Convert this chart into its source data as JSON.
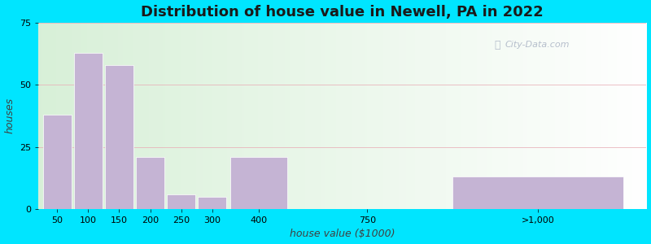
{
  "title": "Distribution of house value in Newell, PA in 2022",
  "xlabel": "house value ($1000)",
  "ylabel": "houses",
  "bar_color": "#c5b4d4",
  "bar_edge_color": "#ffffff",
  "background_outer": "#00e5ff",
  "grid_color": "#e8b0b8",
  "ylim": [
    0,
    75
  ],
  "yticks": [
    0,
    25,
    50,
    75
  ],
  "categories": [
    "50",
    "100",
    "150",
    "200",
    "250",
    "300",
    "400",
    "750",
    ">1,000"
  ],
  "values": [
    38,
    63,
    58,
    21,
    6,
    5,
    21,
    0,
    13
  ],
  "x_positions": [
    0.5,
    1.5,
    2.5,
    3.5,
    4.5,
    5.5,
    7.0,
    10.5,
    16.0
  ],
  "bar_widths": [
    1.0,
    1.0,
    1.0,
    1.0,
    1.0,
    1.0,
    2.0,
    1.0,
    6.0
  ],
  "tick_x": [
    0.5,
    1.5,
    2.5,
    3.5,
    4.5,
    5.5,
    7.0,
    10.5,
    16.0
  ],
  "title_fontsize": 13,
  "label_fontsize": 9,
  "tick_fontsize": 8,
  "xlim": [
    -0.1,
    19.5
  ]
}
